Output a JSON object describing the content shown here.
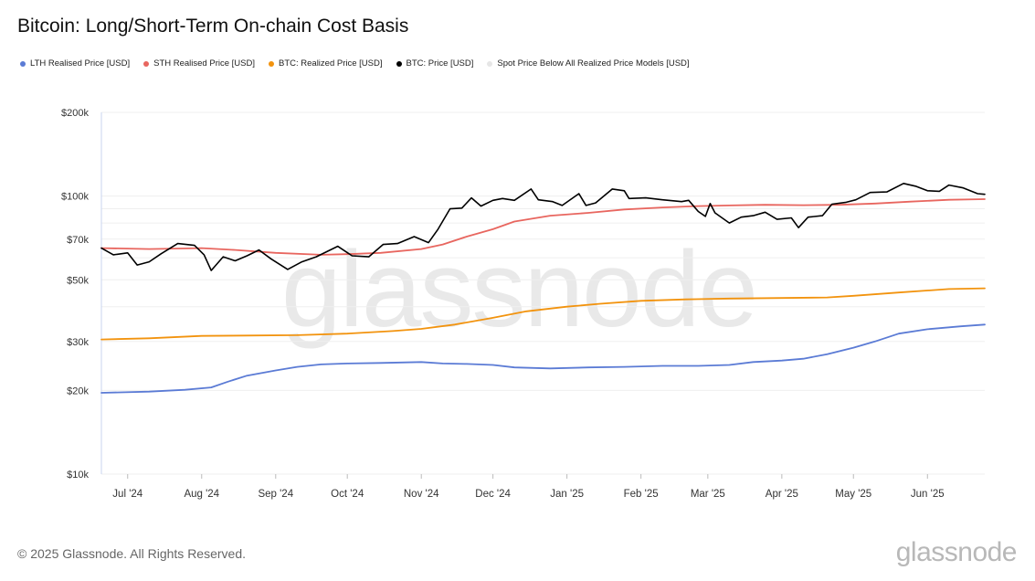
{
  "title": "Bitcoin: Long/Short-Term On-chain Cost Basis",
  "footer": {
    "copyright": "© 2025 Glassnode. All Rights Reserved.",
    "logo": "glassnode"
  },
  "watermark": "glassnode",
  "legend": [
    {
      "label": "LTH Realised Price [USD]",
      "color": "#5b7bd5"
    },
    {
      "label": "STH Realised Price [USD]",
      "color": "#e8665f"
    },
    {
      "label": "BTC: Realized Price [USD]",
      "color": "#f2930e"
    },
    {
      "label": "BTC: Price [USD]",
      "color": "#000000"
    },
    {
      "label": "Spot Price Below All Realized Price Models [USD]",
      "color": "#e6e6e6"
    }
  ],
  "chart_data": {
    "type": "line",
    "title": "Bitcoin: Long/Short-Term On-chain Cost Basis",
    "y_scale": "log",
    "ylim": [
      10000,
      200000
    ],
    "y_ticks": [
      {
        "value": 10000,
        "label": "$10k"
      },
      {
        "value": 20000,
        "label": "$20k"
      },
      {
        "value": 30000,
        "label": "$30k"
      },
      {
        "value": 50000,
        "label": "$50k"
      },
      {
        "value": 70000,
        "label": "$70k"
      },
      {
        "value": 100000,
        "label": "$100k"
      },
      {
        "value": 200000,
        "label": "$200k"
      }
    ],
    "y_gridlines": [
      10000,
      20000,
      30000,
      40000,
      50000,
      60000,
      70000,
      80000,
      90000,
      100000,
      200000
    ],
    "xlim": [
      "2024-06-20",
      "2025-06-25"
    ],
    "x_ticks": [
      {
        "date": "2024-07-01",
        "label": "Jul '24"
      },
      {
        "date": "2024-08-01",
        "label": "Aug '24"
      },
      {
        "date": "2024-09-01",
        "label": "Sep '24"
      },
      {
        "date": "2024-10-01",
        "label": "Oct '24"
      },
      {
        "date": "2024-11-01",
        "label": "Nov '24"
      },
      {
        "date": "2024-12-01",
        "label": "Dec '24"
      },
      {
        "date": "2025-01-01",
        "label": "Jan '25"
      },
      {
        "date": "2025-02-01",
        "label": "Feb '25"
      },
      {
        "date": "2025-03-01",
        "label": "Mar '25"
      },
      {
        "date": "2025-04-01",
        "label": "Apr '25"
      },
      {
        "date": "2025-05-01",
        "label": "May '25"
      },
      {
        "date": "2025-06-01",
        "label": "Jun '25"
      }
    ],
    "legend_position": "top-left",
    "series": [
      {
        "name": "LTH Realised Price [USD]",
        "color": "#5b7bd5",
        "points": [
          [
            "2024-06-20",
            19600
          ],
          [
            "2024-07-10",
            19800
          ],
          [
            "2024-07-25",
            20100
          ],
          [
            "2024-08-05",
            20500
          ],
          [
            "2024-08-12",
            21500
          ],
          [
            "2024-08-20",
            22600
          ],
          [
            "2024-09-01",
            23600
          ],
          [
            "2024-09-10",
            24300
          ],
          [
            "2024-09-20",
            24800
          ],
          [
            "2024-10-01",
            25000
          ],
          [
            "2024-10-15",
            25100
          ],
          [
            "2024-11-01",
            25300
          ],
          [
            "2024-11-10",
            25000
          ],
          [
            "2024-11-20",
            24900
          ],
          [
            "2024-12-01",
            24700
          ],
          [
            "2024-12-10",
            24200
          ],
          [
            "2024-12-25",
            24000
          ],
          [
            "2025-01-10",
            24200
          ],
          [
            "2025-01-25",
            24300
          ],
          [
            "2025-02-10",
            24500
          ],
          [
            "2025-02-25",
            24500
          ],
          [
            "2025-03-10",
            24700
          ],
          [
            "2025-03-20",
            25300
          ],
          [
            "2025-04-01",
            25600
          ],
          [
            "2025-04-10",
            26000
          ],
          [
            "2025-04-20",
            27000
          ],
          [
            "2025-05-01",
            28500
          ],
          [
            "2025-05-10",
            30000
          ],
          [
            "2025-05-20",
            32000
          ],
          [
            "2025-06-01",
            33200
          ],
          [
            "2025-06-15",
            34000
          ],
          [
            "2025-06-25",
            34500
          ]
        ]
      },
      {
        "name": "STH Realised Price [USD]",
        "color": "#e8665f",
        "points": [
          [
            "2024-06-20",
            65000
          ],
          [
            "2024-07-10",
            64500
          ],
          [
            "2024-08-01",
            65000
          ],
          [
            "2024-08-15",
            64000
          ],
          [
            "2024-09-01",
            62500
          ],
          [
            "2024-09-20",
            61500
          ],
          [
            "2024-10-01",
            61800
          ],
          [
            "2024-10-15",
            62500
          ],
          [
            "2024-11-01",
            64500
          ],
          [
            "2024-11-10",
            67000
          ],
          [
            "2024-11-20",
            71500
          ],
          [
            "2024-12-01",
            76000
          ],
          [
            "2024-12-10",
            81000
          ],
          [
            "2024-12-25",
            85000
          ],
          [
            "2025-01-10",
            87000
          ],
          [
            "2025-01-25",
            89500
          ],
          [
            "2025-02-10",
            91000
          ],
          [
            "2025-02-25",
            92000
          ],
          [
            "2025-03-10",
            92500
          ],
          [
            "2025-03-25",
            93000
          ],
          [
            "2025-04-10",
            92700
          ],
          [
            "2025-04-25",
            93000
          ],
          [
            "2025-05-10",
            94000
          ],
          [
            "2025-05-25",
            95500
          ],
          [
            "2025-06-10",
            97000
          ],
          [
            "2025-06-25",
            97500
          ]
        ]
      },
      {
        "name": "BTC: Realized Price [USD]",
        "color": "#f2930e",
        "points": [
          [
            "2024-06-20",
            30500
          ],
          [
            "2024-07-10",
            30800
          ],
          [
            "2024-08-01",
            31400
          ],
          [
            "2024-08-20",
            31500
          ],
          [
            "2024-09-10",
            31600
          ],
          [
            "2024-10-01",
            32000
          ],
          [
            "2024-10-20",
            32700
          ],
          [
            "2024-11-01",
            33300
          ],
          [
            "2024-11-15",
            34500
          ],
          [
            "2024-12-01",
            36500
          ],
          [
            "2024-12-15",
            38500
          ],
          [
            "2025-01-01",
            40000
          ],
          [
            "2025-01-15",
            41000
          ],
          [
            "2025-02-01",
            42000
          ],
          [
            "2025-02-20",
            42500
          ],
          [
            "2025-03-10",
            42800
          ],
          [
            "2025-04-01",
            43000
          ],
          [
            "2025-04-20",
            43200
          ],
          [
            "2025-05-01",
            43800
          ],
          [
            "2025-05-20",
            45000
          ],
          [
            "2025-06-10",
            46300
          ],
          [
            "2025-06-25",
            46600
          ]
        ]
      },
      {
        "name": "BTC: Price [USD]",
        "color": "#000000",
        "points": [
          [
            "2024-06-20",
            65000
          ],
          [
            "2024-06-25",
            61500
          ],
          [
            "2024-07-01",
            62500
          ],
          [
            "2024-07-05",
            56500
          ],
          [
            "2024-07-10",
            58000
          ],
          [
            "2024-07-15",
            62000
          ],
          [
            "2024-07-22",
            67500
          ],
          [
            "2024-07-29",
            66500
          ],
          [
            "2024-08-02",
            61500
          ],
          [
            "2024-08-05",
            54000
          ],
          [
            "2024-08-10",
            60500
          ],
          [
            "2024-08-15",
            58500
          ],
          [
            "2024-08-20",
            61000
          ],
          [
            "2024-08-25",
            64000
          ],
          [
            "2024-08-30",
            59500
          ],
          [
            "2024-09-06",
            54500
          ],
          [
            "2024-09-12",
            58000
          ],
          [
            "2024-09-18",
            60500
          ],
          [
            "2024-09-27",
            66000
          ],
          [
            "2024-10-03",
            61000
          ],
          [
            "2024-10-10",
            60500
          ],
          [
            "2024-10-16",
            67000
          ],
          [
            "2024-10-22",
            67500
          ],
          [
            "2024-10-29",
            71500
          ],
          [
            "2024-11-04",
            68000
          ],
          [
            "2024-11-08",
            76000
          ],
          [
            "2024-11-13",
            90000
          ],
          [
            "2024-11-18",
            90500
          ],
          [
            "2024-11-22",
            98500
          ],
          [
            "2024-11-26",
            92000
          ],
          [
            "2024-12-01",
            96500
          ],
          [
            "2024-12-05",
            98000
          ],
          [
            "2024-12-10",
            96500
          ],
          [
            "2024-12-17",
            106000
          ],
          [
            "2024-12-20",
            97000
          ],
          [
            "2024-12-26",
            95500
          ],
          [
            "2024-12-30",
            92500
          ],
          [
            "2025-01-06",
            102000
          ],
          [
            "2025-01-09",
            92500
          ],
          [
            "2025-01-13",
            94500
          ],
          [
            "2025-01-20",
            106000
          ],
          [
            "2025-01-25",
            104500
          ],
          [
            "2025-01-27",
            98000
          ],
          [
            "2025-02-03",
            98500
          ],
          [
            "2025-02-10",
            97000
          ],
          [
            "2025-02-18",
            95500
          ],
          [
            "2025-02-21",
            96500
          ],
          [
            "2025-02-25",
            88000
          ],
          [
            "2025-02-28",
            84500
          ],
          [
            "2025-03-02",
            94000
          ],
          [
            "2025-03-04",
            87000
          ],
          [
            "2025-03-10",
            80000
          ],
          [
            "2025-03-15",
            84000
          ],
          [
            "2025-03-20",
            85000
          ],
          [
            "2025-03-25",
            87500
          ],
          [
            "2025-03-30",
            82500
          ],
          [
            "2025-04-05",
            83500
          ],
          [
            "2025-04-08",
            77000
          ],
          [
            "2025-04-12",
            84000
          ],
          [
            "2025-04-18",
            85000
          ],
          [
            "2025-04-22",
            93500
          ],
          [
            "2025-04-28",
            95000
          ],
          [
            "2025-05-02",
            97000
          ],
          [
            "2025-05-08",
            103000
          ],
          [
            "2025-05-15",
            103500
          ],
          [
            "2025-05-22",
            111000
          ],
          [
            "2025-05-27",
            108500
          ],
          [
            "2025-06-01",
            104500
          ],
          [
            "2025-06-06",
            104000
          ],
          [
            "2025-06-10",
            109500
          ],
          [
            "2025-06-16",
            107000
          ],
          [
            "2025-06-22",
            102000
          ],
          [
            "2025-06-25",
            101500
          ]
        ]
      }
    ]
  }
}
